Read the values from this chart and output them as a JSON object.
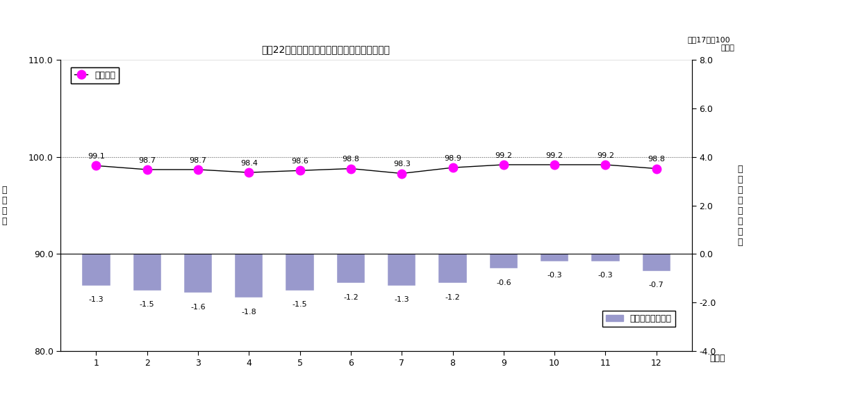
{
  "title": "平成22年鳥取市総合指数及び対前年同月上昇率",
  "right_axis_label_line1": "平成17年＝100",
  "right_axis_label_line2": "（％）",
  "months": [
    1,
    2,
    3,
    4,
    5,
    6,
    7,
    8,
    9,
    10,
    11,
    12
  ],
  "month_labels": [
    "1",
    "2",
    "3",
    "4",
    "5",
    "6",
    "7",
    "8",
    "9",
    "10",
    "11",
    "12"
  ],
  "index_values": [
    99.1,
    98.7,
    98.7,
    98.4,
    98.6,
    98.8,
    98.3,
    98.9,
    99.2,
    99.2,
    99.2,
    98.8
  ],
  "yoy_values": [
    -1.3,
    -1.5,
    -1.6,
    -1.8,
    -1.5,
    -1.2,
    -1.3,
    -1.2,
    -0.6,
    -0.3,
    -0.3,
    -0.7
  ],
  "left_ylim": [
    80.0,
    110.0
  ],
  "right_ylim": [
    -4.0,
    8.0
  ],
  "left_yticks": [
    80.0,
    90.0,
    100.0,
    110.0
  ],
  "right_yticks": [
    -4.0,
    -2.0,
    0.0,
    2.0,
    4.0,
    6.0,
    8.0
  ],
  "bar_color": "#9999cc",
  "line_color": "#000000",
  "marker_color": "#ff00ff",
  "marker_edge_color": "#ff00ff",
  "left_ylabel_chars": [
    "総",
    "合",
    "指",
    "数"
  ],
  "right_ylabel_chars": [
    "対",
    "前",
    "年",
    "同",
    "月",
    "上",
    "昇",
    "率"
  ],
  "xlabel": "（月）",
  "legend1_label": "総合指数",
  "legend2_label": "対前年同月上昇率",
  "background_color": "#ffffff",
  "grid_color": "#aaaaaa",
  "dotted_line_value": 100.0,
  "title_fontsize": 10,
  "tick_fontsize": 9,
  "label_fontsize": 9,
  "annotation_fontsize": 8
}
